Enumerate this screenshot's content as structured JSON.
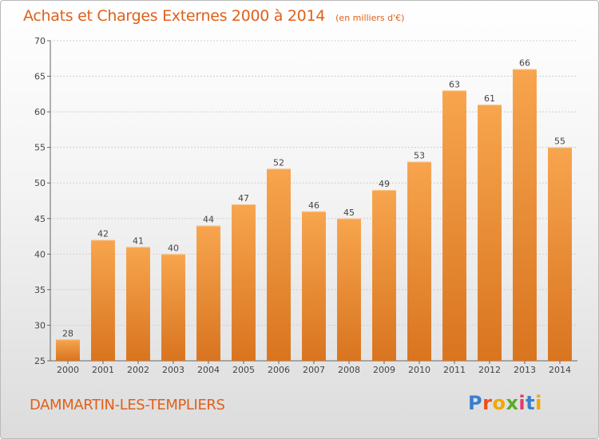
{
  "title": "Achats et Charges Externes 2000 à 2014",
  "subtitle": "(en milliers d'€)",
  "commune": "DAMMARTIN-LES-TEMPLIERS",
  "logo": {
    "letters": [
      "P",
      "r",
      "o",
      "x",
      "i",
      "t",
      "i"
    ],
    "colors": [
      "#3a7fcf",
      "#e8501c",
      "#f2a800",
      "#5aaa2a",
      "#e23a6a",
      "#3a7fcf",
      "#f2a800"
    ]
  },
  "colors": {
    "bar_light": "#f7a54e",
    "bar_dark": "#d9741f",
    "text": "#e0601a"
  },
  "chart_data": {
    "type": "bar",
    "title": "Achats et Charges Externes 2000 à 2014",
    "subtitle": "(en milliers d'€)",
    "categories": [
      "2000",
      "2001",
      "2002",
      "2003",
      "2004",
      "2005",
      "2006",
      "2007",
      "2008",
      "2009",
      "2010",
      "2011",
      "2012",
      "2013",
      "2014"
    ],
    "values": [
      28,
      42,
      41,
      40,
      44,
      47,
      52,
      46,
      45,
      49,
      53,
      63,
      61,
      66,
      55
    ],
    "ylim": [
      25,
      70
    ],
    "yticks": [
      25,
      30,
      35,
      40,
      45,
      50,
      55,
      60,
      65,
      70
    ],
    "grid": true,
    "data_labels": true
  }
}
